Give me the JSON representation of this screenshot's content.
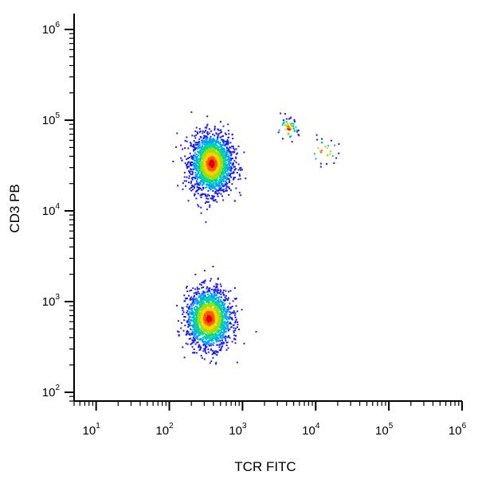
{
  "chart_data": {
    "type": "scatter",
    "title": "",
    "xlabel": "TCR FITC",
    "ylabel": "CD3 PB",
    "xscale": "log",
    "yscale": "log",
    "xlim": [
      5,
      1000000
    ],
    "ylim": [
      80,
      1500000
    ],
    "x_ticks": [
      {
        "base": "10",
        "exp": "1",
        "value": 10
      },
      {
        "base": "10",
        "exp": "2",
        "value": 100
      },
      {
        "base": "10",
        "exp": "3",
        "value": 1000
      },
      {
        "base": "10",
        "exp": "4",
        "value": 10000
      },
      {
        "base": "10",
        "exp": "5",
        "value": 100000
      },
      {
        "base": "10",
        "exp": "6",
        "value": 1000000
      }
    ],
    "y_ticks": [
      {
        "base": "10",
        "exp": "2",
        "value": 100
      },
      {
        "base": "10",
        "exp": "3",
        "value": 1000
      },
      {
        "base": "10",
        "exp": "4",
        "value": 10000
      },
      {
        "base": "10",
        "exp": "5",
        "value": 100000
      },
      {
        "base": "10",
        "exp": "6",
        "value": 1000000
      }
    ],
    "grid": false,
    "legend": "none",
    "color_scale": [
      "#1a1aff",
      "#00a0ff",
      "#00d4a0",
      "#9be000",
      "#ffd000",
      "#ff5a00",
      "#e00000"
    ],
    "populations": [
      {
        "x_center": 380,
        "y_center": 33000,
        "x_spread_log10": 0.14,
        "y_spread_log10": 0.16,
        "count": 2200
      },
      {
        "x_center": 350,
        "y_center": 650,
        "x_spread_log10": 0.15,
        "y_spread_log10": 0.16,
        "count": 1900
      },
      {
        "x_center": 4200,
        "y_center": 80000,
        "x_spread_log10": 0.07,
        "y_spread_log10": 0.06,
        "count": 60
      },
      {
        "x_center": 13000,
        "y_center": 45000,
        "x_spread_log10": 0.1,
        "y_spread_log10": 0.07,
        "count": 28
      }
    ]
  }
}
